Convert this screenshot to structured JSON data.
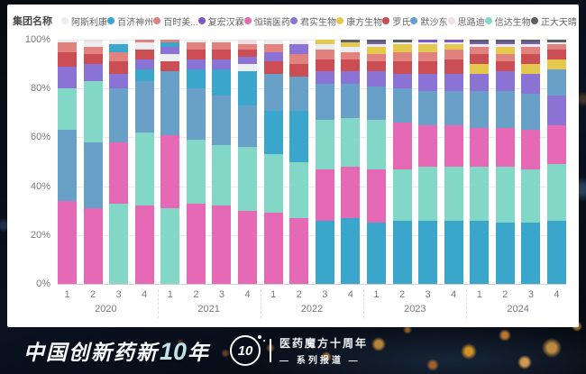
{
  "legend": {
    "title": "集团名称"
  },
  "chart_data": {
    "type": "bar",
    "subtype": "100%-stacked-column, segments sorted largest-at-bottom per bar",
    "title": "",
    "xlabel": "",
    "ylabel": "",
    "ylim": [
      0,
      100
    ],
    "y_tick_labels": [
      "0%",
      "20%",
      "40%",
      "60%",
      "80%",
      "100%"
    ],
    "years": [
      "2020",
      "2021",
      "2022",
      "2023",
      "2024"
    ],
    "quarters_per_year": [
      "1",
      "2",
      "3",
      "4"
    ],
    "legend_position": "top",
    "grid": true,
    "series": [
      {
        "key": "astrazeneca",
        "name": "阿斯利康",
        "color": "#ecedf1",
        "values": [
          1,
          2,
          2,
          3,
          3,
          1,
          1,
          3,
          2,
          2,
          2,
          2,
          1,
          1,
          1,
          1,
          1,
          1,
          1,
          1
        ]
      },
      {
        "key": "beigene",
        "name": "百济神州",
        "color": "#3ba6cb",
        "values": [
          0,
          0,
          3,
          5,
          2,
          8,
          11,
          14,
          18,
          21,
          26,
          27,
          25,
          26,
          26,
          26,
          26,
          25,
          25,
          26
        ]
      },
      {
        "key": "bms",
        "name": "百时美...",
        "color": "#e2827f",
        "values": [
          4,
          3,
          4,
          1,
          1,
          3,
          3,
          2,
          3,
          4,
          4,
          3,
          3,
          4,
          4,
          4,
          3,
          3,
          3,
          2
        ]
      },
      {
        "key": "henlius",
        "name": "复宏汉霖",
        "color": "#7e57c5",
        "values": [
          0,
          0,
          0,
          0,
          0,
          0,
          0,
          0,
          0,
          0,
          0,
          0,
          1,
          0,
          1,
          1,
          1,
          1,
          1,
          0
        ]
      },
      {
        "key": "hengrui",
        "name": "恒瑞医药",
        "color": "#e569b4",
        "values": [
          34,
          31,
          25,
          32,
          30,
          33,
          32,
          30,
          29,
          27,
          21,
          21,
          22,
          19,
          17,
          17,
          16,
          16,
          16,
          16
        ]
      },
      {
        "key": "junshi",
        "name": "君实生物",
        "color": "#8b73d6",
        "values": [
          9,
          7,
          6,
          4,
          3,
          4,
          4,
          3,
          4,
          4,
          5,
          5,
          6,
          6,
          7,
          7,
          7,
          8,
          8,
          12
        ]
      },
      {
        "key": "akeso",
        "name": "康方生物",
        "color": "#e5c94e",
        "values": [
          0,
          0,
          0,
          0,
          0,
          0,
          0,
          0,
          0,
          0,
          2,
          2,
          3,
          3,
          3,
          2,
          4,
          3,
          4,
          4
        ]
      },
      {
        "key": "roche",
        "name": "罗氏",
        "color": "#cb4e54",
        "values": [
          6,
          4,
          5,
          4,
          4,
          4,
          4,
          3,
          5,
          5,
          5,
          5,
          4,
          5,
          5,
          6,
          4,
          4,
          4,
          4
        ]
      },
      {
        "key": "msd",
        "name": "默沙东",
        "color": "#68a0c8",
        "values": [
          29,
          27,
          22,
          21,
          26,
          21,
          20,
          17,
          15,
          14,
          15,
          14,
          14,
          14,
          14,
          14,
          15,
          15,
          15,
          11
        ]
      },
      {
        "key": "3dmed",
        "name": "思路迪",
        "color": "#f0dfe4",
        "values": [
          0,
          1,
          0,
          0,
          0,
          0,
          0,
          2,
          0,
          0,
          0,
          0,
          0,
          0,
          0,
          0,
          0,
          0,
          0,
          0
        ]
      },
      {
        "key": "innovent",
        "name": "信达生物",
        "color": "#82d7c6",
        "values": [
          17,
          25,
          33,
          30,
          31,
          26,
          25,
          26,
          24,
          23,
          20,
          20,
          20,
          21,
          22,
          22,
          22,
          23,
          22,
          23
        ]
      },
      {
        "key": "cttq",
        "name": "正大天晴",
        "color": "#5b6068",
        "values": [
          0,
          0,
          0,
          0,
          0,
          0,
          0,
          0,
          0,
          0,
          0,
          1,
          1,
          1,
          0,
          0,
          1,
          1,
          1,
          1
        ]
      }
    ]
  },
  "footer": {
    "title_prefix": "中国创新药新",
    "title_num": "10",
    "title_suffix": "年",
    "logo_num": "10",
    "tagline1": "医药魔方十周年",
    "tagline2": "— 系列报道 —"
  }
}
